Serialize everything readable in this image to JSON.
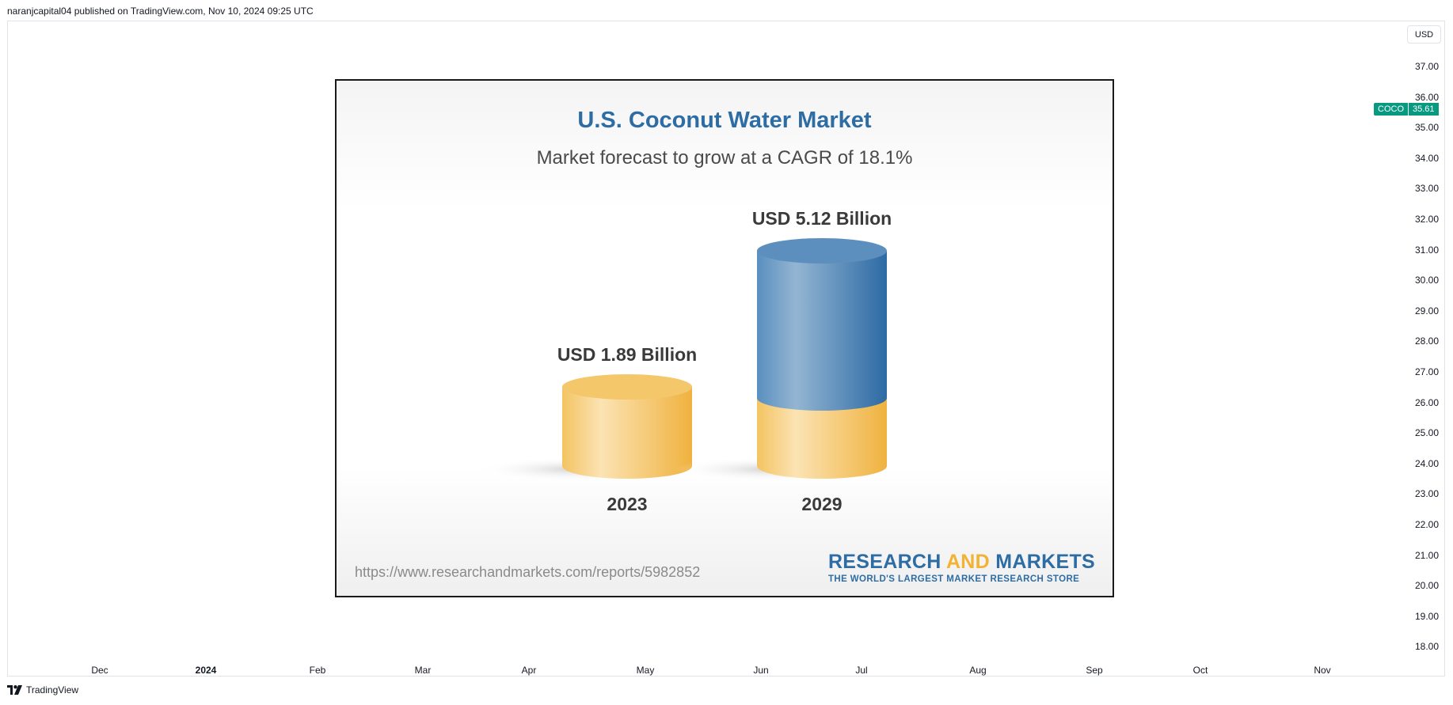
{
  "header": {
    "published_text": "naranjcapital04 published on TradingView.com, Nov 10, 2024 09:25 UTC"
  },
  "price_axis": {
    "currency_button": "USD",
    "ticks": [
      "37.00",
      "36.00",
      "35.00",
      "34.00",
      "33.00",
      "32.00",
      "31.00",
      "30.00",
      "29.00",
      "28.00",
      "27.00",
      "26.00",
      "25.00",
      "24.00",
      "23.00",
      "22.00",
      "21.00",
      "20.00",
      "19.00",
      "18.00"
    ],
    "last_price": {
      "symbol": "COCO",
      "value": "35.61"
    }
  },
  "time_axis": {
    "ticks": [
      {
        "label": "Dec",
        "year": false
      },
      {
        "label": "2024",
        "year": true
      },
      {
        "label": "Feb",
        "year": false
      },
      {
        "label": "Mar",
        "year": false
      },
      {
        "label": "Apr",
        "year": false
      },
      {
        "label": "May",
        "year": false
      },
      {
        "label": "Jun",
        "year": false
      },
      {
        "label": "Jul",
        "year": false
      },
      {
        "label": "Aug",
        "year": false
      },
      {
        "label": "Sep",
        "year": false
      },
      {
        "label": "Oct",
        "year": false
      },
      {
        "label": "Nov",
        "year": false
      }
    ]
  },
  "infographic": {
    "title": "U.S. Coconut Water Market",
    "subtitle": "Market forecast to grow at a CAGR of 18.1%",
    "bars": [
      {
        "year": "2023",
        "label": "USD 1.89 Billion",
        "value": 1.89
      },
      {
        "year": "2029",
        "label": "USD 5.12 Billion",
        "value": 5.12
      }
    ],
    "url": "https://www.researchandmarkets.com/reports/5982852",
    "logo_line1_a": "RESEARCH ",
    "logo_line1_b": "AND",
    "logo_line1_c": " MARKETS",
    "logo_line2": "THE WORLD'S LARGEST MARKET RESEARCH STORE",
    "colors": {
      "base": "#f2c15a",
      "growth": "#3a78b0",
      "title": "#2e6da4"
    }
  },
  "footer": {
    "brand": "TradingView"
  }
}
